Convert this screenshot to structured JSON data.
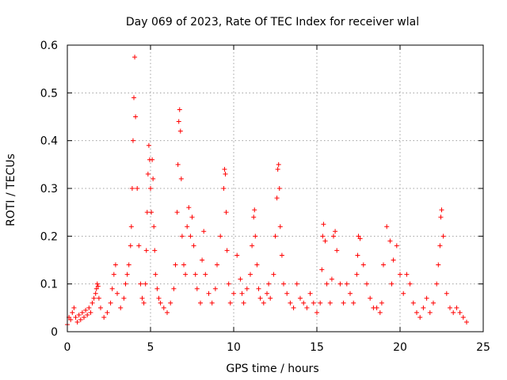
{
  "chart_data": {
    "type": "scatter",
    "title": "Day 069 of 2023, Rate Of TEC Index for receiver wlal",
    "xlabel": "GPS time / hours",
    "ylabel": "ROTI / TECUs",
    "xlim": [
      0,
      25
    ],
    "ylim": [
      0,
      0.6
    ],
    "xticks": [
      0,
      5,
      10,
      15,
      20,
      25
    ],
    "yticks": [
      0,
      0.1,
      0.2,
      0.3,
      0.4,
      0.5,
      0.6
    ],
    "xtick_labels": [
      "0",
      "5",
      "10",
      "15",
      "20",
      "25"
    ],
    "ytick_labels": [
      "0",
      "0.1",
      "0.2",
      "0.3",
      "0.4",
      "0.5",
      "0.6"
    ],
    "grid": true,
    "marker": "plus",
    "color": "#ff0000",
    "series": [
      {
        "x": [
          0.0,
          0.1,
          0.2,
          0.3,
          0.4,
          0.5,
          0.6,
          0.7,
          0.8,
          0.9,
          1.0,
          1.1,
          1.2,
          1.3,
          1.4,
          1.5,
          1.6,
          1.7,
          1.75,
          1.8,
          1.85,
          1.9,
          2.0,
          2.2,
          2.4,
          2.6,
          2.7,
          2.8,
          2.9,
          3.0,
          3.2,
          3.4,
          3.5,
          3.6,
          3.7,
          3.8,
          3.85,
          3.9,
          3.95,
          4.0,
          4.05,
          4.1,
          4.2,
          4.3,
          4.4,
          4.5,
          4.6,
          4.7,
          4.75,
          4.8,
          4.85,
          4.9,
          4.95,
          5.0,
          5.05,
          5.1,
          5.15,
          5.2,
          5.25,
          5.3,
          5.4,
          5.5,
          5.6,
          5.8,
          6.0,
          6.2,
          6.4,
          6.5,
          6.6,
          6.65,
          6.7,
          6.75,
          6.8,
          6.85,
          6.9,
          7.0,
          7.1,
          7.2,
          7.3,
          7.4,
          7.5,
          7.6,
          7.7,
          7.8,
          8.0,
          8.1,
          8.2,
          8.3,
          8.5,
          8.7,
          8.9,
          9.0,
          9.2,
          9.4,
          9.45,
          9.5,
          9.55,
          9.6,
          9.7,
          9.8,
          10.0,
          10.2,
          10.4,
          10.5,
          10.6,
          10.8,
          11.0,
          11.1,
          11.2,
          11.25,
          11.3,
          11.4,
          11.5,
          11.6,
          11.8,
          12.0,
          12.1,
          12.2,
          12.4,
          12.5,
          12.6,
          12.65,
          12.7,
          12.75,
          12.8,
          12.9,
          13.0,
          13.2,
          13.4,
          13.6,
          13.8,
          14.0,
          14.2,
          14.4,
          14.6,
          14.8,
          15.0,
          15.2,
          15.3,
          15.35,
          15.4,
          15.5,
          15.6,
          15.8,
          15.9,
          16.0,
          16.1,
          16.2,
          16.4,
          16.6,
          16.8,
          17.0,
          17.2,
          17.4,
          17.45,
          17.5,
          17.6,
          17.8,
          18.0,
          18.2,
          18.4,
          18.6,
          18.8,
          18.9,
          19.0,
          19.2,
          19.4,
          19.5,
          19.6,
          19.8,
          20.0,
          20.2,
          20.4,
          20.6,
          20.8,
          21.0,
          21.2,
          21.4,
          21.6,
          21.8,
          22.0,
          22.2,
          22.3,
          22.4,
          22.45,
          22.5,
          22.6,
          22.8,
          23.0,
          23.2,
          23.4,
          23.6,
          23.8,
          24.0
        ],
        "y": [
          0.015,
          0.03,
          0.025,
          0.04,
          0.05,
          0.03,
          0.02,
          0.035,
          0.025,
          0.04,
          0.03,
          0.045,
          0.035,
          0.05,
          0.04,
          0.06,
          0.07,
          0.08,
          0.09,
          0.1,
          0.095,
          0.07,
          0.05,
          0.03,
          0.04,
          0.06,
          0.09,
          0.12,
          0.14,
          0.08,
          0.05,
          0.07,
          0.1,
          0.12,
          0.14,
          0.18,
          0.22,
          0.3,
          0.4,
          0.49,
          0.575,
          0.45,
          0.3,
          0.18,
          0.1,
          0.07,
          0.06,
          0.1,
          0.17,
          0.25,
          0.33,
          0.39,
          0.36,
          0.3,
          0.25,
          0.36,
          0.32,
          0.22,
          0.17,
          0.12,
          0.09,
          0.07,
          0.06,
          0.05,
          0.04,
          0.06,
          0.09,
          0.14,
          0.25,
          0.35,
          0.44,
          0.465,
          0.42,
          0.32,
          0.2,
          0.14,
          0.12,
          0.22,
          0.26,
          0.2,
          0.24,
          0.18,
          0.12,
          0.09,
          0.06,
          0.15,
          0.21,
          0.12,
          0.08,
          0.06,
          0.09,
          0.14,
          0.2,
          0.3,
          0.34,
          0.33,
          0.25,
          0.17,
          0.1,
          0.06,
          0.08,
          0.16,
          0.11,
          0.08,
          0.06,
          0.09,
          0.12,
          0.18,
          0.24,
          0.255,
          0.2,
          0.14,
          0.09,
          0.07,
          0.06,
          0.08,
          0.1,
          0.07,
          0.12,
          0.2,
          0.28,
          0.34,
          0.35,
          0.3,
          0.22,
          0.16,
          0.1,
          0.08,
          0.06,
          0.05,
          0.1,
          0.07,
          0.06,
          0.05,
          0.08,
          0.06,
          0.04,
          0.06,
          0.13,
          0.2,
          0.225,
          0.19,
          0.1,
          0.06,
          0.11,
          0.2,
          0.21,
          0.17,
          0.1,
          0.06,
          0.1,
          0.08,
          0.06,
          0.12,
          0.16,
          0.2,
          0.195,
          0.14,
          0.1,
          0.07,
          0.05,
          0.05,
          0.04,
          0.06,
          0.14,
          0.22,
          0.19,
          0.1,
          0.15,
          0.18,
          0.12,
          0.08,
          0.12,
          0.1,
          0.06,
          0.04,
          0.03,
          0.05,
          0.07,
          0.04,
          0.06,
          0.1,
          0.14,
          0.18,
          0.24,
          0.255,
          0.2,
          0.08,
          0.05,
          0.04,
          0.05,
          0.04,
          0.03,
          0.02
        ]
      }
    ]
  }
}
